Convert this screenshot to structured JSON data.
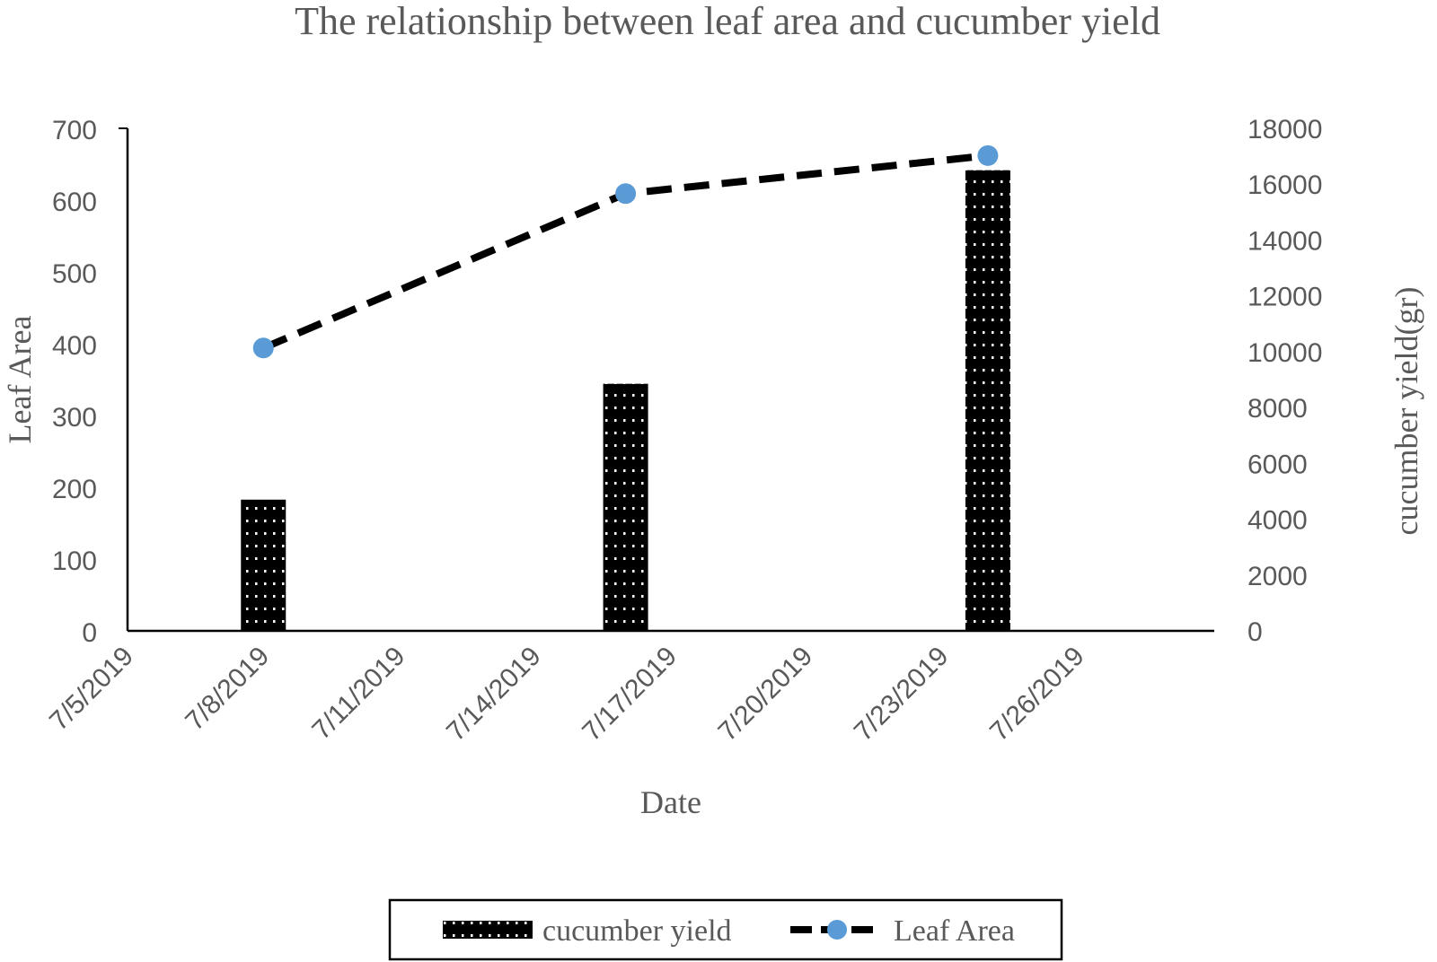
{
  "chart_data": {
    "type": "bar",
    "title": "The relationship between leaf area and cucumber yield",
    "xlabel": "Date",
    "ylabel_left": "Leaf Area",
    "ylabel_right": "cucumber yield(gr)",
    "x_ticks": [
      "7/5/2019",
      "7/8/2019",
      "7/11/2019",
      "7/14/2019",
      "7/17/2019",
      "7/20/2019",
      "7/23/2019",
      "7/26/2019"
    ],
    "xlim": [
      "2019-07-05",
      "2019-07-29"
    ],
    "y_left_ticks": [
      "0",
      "100",
      "200",
      "300",
      "400",
      "500",
      "600",
      "700"
    ],
    "y_right_ticks": [
      "0",
      "2000",
      "4000",
      "6000",
      "8000",
      "10000",
      "12000",
      "14000",
      "16000",
      "18000"
    ],
    "ylim_left": [
      0,
      700
    ],
    "ylim_right": [
      0,
      18000
    ],
    "grid": false,
    "legend_position": "bottom",
    "series": [
      {
        "name": "cucumber yield",
        "type": "bar",
        "axis": "right",
        "x": [
          "2019-07-08",
          "2019-07-16",
          "2019-07-24"
        ],
        "values": [
          4700,
          8850,
          16500
        ],
        "color": "#000000"
      },
      {
        "name": "Leaf Area",
        "type": "line",
        "axis": "left",
        "x": [
          "2019-07-08",
          "2019-07-16",
          "2019-07-24"
        ],
        "values": [
          394,
          609,
          662
        ],
        "line_color": "#000000",
        "marker_color": "#5b9bd5"
      }
    ]
  }
}
